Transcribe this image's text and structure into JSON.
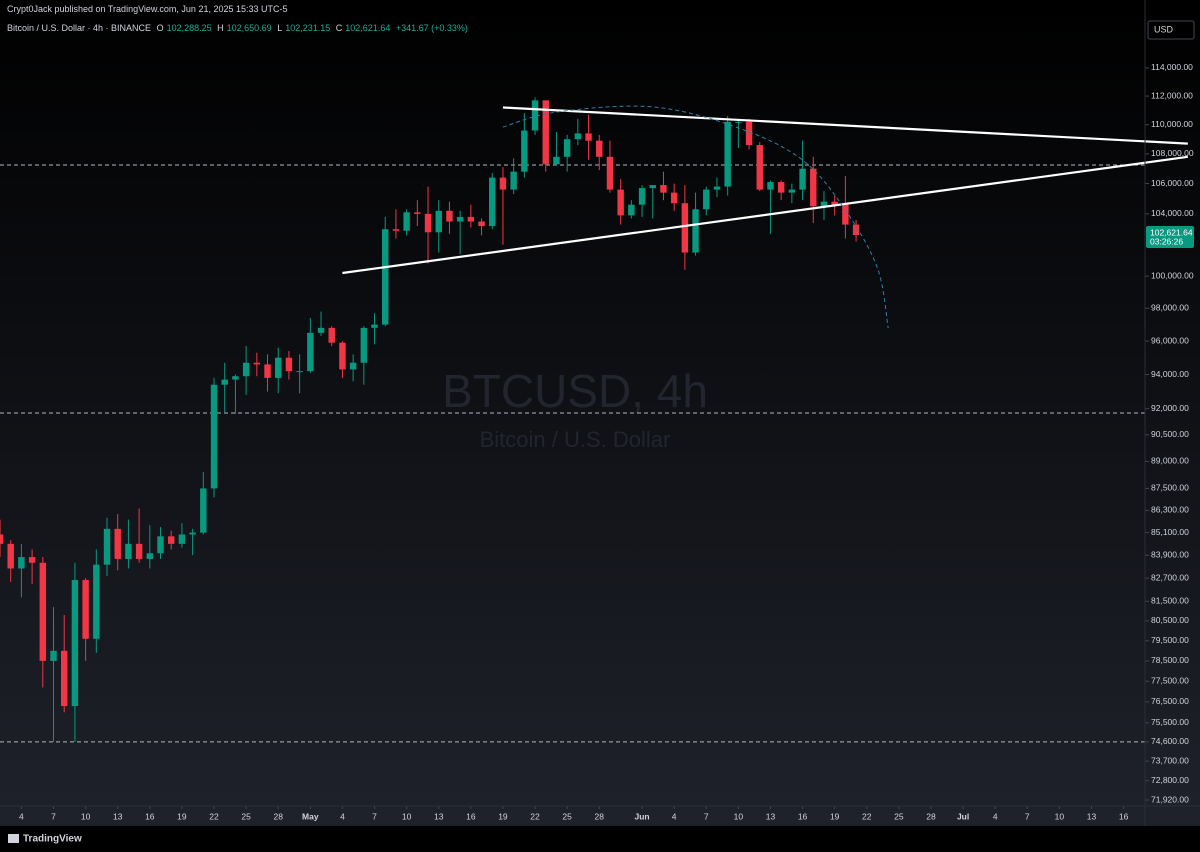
{
  "header": {
    "published": "Crypt0Jack published on TradingView.com, Jun 21, 2025 15:33 UTC-5",
    "symbol": "Bitcoin / U.S. Dollar · 4h · BINANCE",
    "ohlc": [
      {
        "key": "O",
        "value": "102,288.25"
      },
      {
        "key": "H",
        "value": "102,650.69"
      },
      {
        "key": "L",
        "value": "102,231.15"
      },
      {
        "key": "C",
        "value": "102,621.64"
      }
    ],
    "change": "+341.67 (+0.33%)"
  },
  "footer": {
    "brand": "TradingView"
  },
  "chart_data": {
    "type": "candlestick",
    "currency": "USD",
    "watermark": {
      "symbol": "BTCUSD, 4h",
      "description": "Bitcoin / U.S. Dollar"
    },
    "x": [
      "2025-04-02",
      "2025-04-03",
      "2025-04-04",
      "2025-04-05",
      "2025-04-06",
      "2025-04-07",
      "2025-04-08",
      "2025-04-09",
      "2025-04-10",
      "2025-04-11",
      "2025-04-12",
      "2025-04-13",
      "2025-04-14",
      "2025-04-15",
      "2025-04-16",
      "2025-04-17",
      "2025-04-18",
      "2025-04-19",
      "2025-04-20",
      "2025-04-21",
      "2025-04-22",
      "2025-04-23",
      "2025-04-24",
      "2025-04-25",
      "2025-04-26",
      "2025-04-27",
      "2025-04-28",
      "2025-04-29",
      "2025-04-30",
      "2025-05-01",
      "2025-05-02",
      "2025-05-03",
      "2025-05-04",
      "2025-05-05",
      "2025-05-06",
      "2025-05-07",
      "2025-05-08",
      "2025-05-09",
      "2025-05-10",
      "2025-05-11",
      "2025-05-12",
      "2025-05-13",
      "2025-05-14",
      "2025-05-15",
      "2025-05-16",
      "2025-05-17",
      "2025-05-18",
      "2025-05-19",
      "2025-05-20",
      "2025-05-21",
      "2025-05-22",
      "2025-05-23",
      "2025-05-24",
      "2025-05-25",
      "2025-05-26",
      "2025-05-27",
      "2025-05-28",
      "2025-05-29",
      "2025-05-30",
      "2025-05-31",
      "2025-06-01",
      "2025-06-02",
      "2025-06-03",
      "2025-06-04",
      "2025-06-05",
      "2025-06-06",
      "2025-06-07",
      "2025-06-08",
      "2025-06-09",
      "2025-06-10",
      "2025-06-11",
      "2025-06-12",
      "2025-06-13",
      "2025-06-14",
      "2025-06-15",
      "2025-06-16",
      "2025-06-17",
      "2025-06-18",
      "2025-06-19",
      "2025-06-20",
      "2025-06-21"
    ],
    "open": [
      85000,
      84500,
      83200,
      83800,
      83500,
      78500,
      79000,
      76300,
      82600,
      79600,
      83400,
      85300,
      83700,
      84500,
      83700,
      84000,
      84900,
      84500,
      85000,
      85100,
      87500,
      93400,
      93700,
      93900,
      94700,
      94600,
      93800,
      95000,
      94200,
      94200,
      96500,
      96800,
      95900,
      94300,
      94700,
      96800,
      97000,
      103000,
      102900,
      104100,
      104000,
      102800,
      104200,
      103500,
      103800,
      103500,
      103200,
      106400,
      105600,
      106800,
      109600,
      111700,
      107300,
      107800,
      109000,
      109400,
      108900,
      107800,
      105600,
      103900,
      104600,
      105700,
      105900,
      105400,
      104700,
      101500,
      104300,
      105600,
      105800,
      110200,
      110200,
      108600,
      105600,
      106100,
      105400,
      105600,
      107000,
      104500,
      104800,
      104600,
      103300
    ],
    "high": [
      85800,
      84700,
      84500,
      84200,
      83800,
      81200,
      80800,
      83500,
      82700,
      84200,
      85900,
      86100,
      85800,
      86400,
      85500,
      85400,
      85200,
      85600,
      85300,
      88400,
      93800,
      94700,
      94000,
      95700,
      95300,
      95200,
      95600,
      95400,
      95200,
      97400,
      97800,
      96900,
      96000,
      95200,
      96900,
      97700,
      103800,
      104300,
      104300,
      104900,
      105800,
      104900,
      104800,
      104200,
      104600,
      103700,
      106700,
      107100,
      107700,
      110800,
      111900,
      111300,
      109500,
      109300,
      110400,
      110700,
      109300,
      108900,
      106300,
      104900,
      105900,
      105900,
      106800,
      106000,
      105900,
      105400,
      105800,
      106400,
      110600,
      110400,
      110400,
      108800,
      106200,
      106200,
      106000,
      108900,
      107800,
      105500,
      105200,
      106500,
      103600
    ],
    "low": [
      83800,
      82500,
      81700,
      82400,
      77200,
      74600,
      76000,
      74600,
      78500,
      78900,
      82800,
      83100,
      83200,
      83500,
      83200,
      83700,
      84200,
      84300,
      83900,
      85000,
      87000,
      91800,
      91700,
      92800,
      93900,
      93000,
      92900,
      93700,
      92900,
      94100,
      96300,
      95700,
      93800,
      93600,
      93400,
      95800,
      96900,
      102400,
      102600,
      103200,
      100800,
      101500,
      102700,
      101400,
      103100,
      102600,
      103000,
      102000,
      105300,
      106400,
      109300,
      106800,
      107200,
      106800,
      108600,
      107600,
      106900,
      105400,
      103300,
      103700,
      103800,
      103700,
      104900,
      104200,
      100400,
      101300,
      103900,
      105100,
      105200,
      108400,
      108300,
      105500,
      102700,
      104900,
      104700,
      104900,
      103400,
      103600,
      103900,
      102400,
      102200
    ],
    "close": [
      84500,
      83200,
      83800,
      83500,
      78500,
      79000,
      76300,
      82600,
      79600,
      83400,
      85300,
      83700,
      84500,
      83700,
      84000,
      84900,
      84500,
      85000,
      85100,
      87500,
      93400,
      93700,
      93900,
      94700,
      94600,
      93800,
      95000,
      94200,
      94200,
      96500,
      96800,
      95900,
      94300,
      94700,
      96800,
      97000,
      103000,
      102900,
      104100,
      104000,
      102800,
      104200,
      103500,
      103800,
      103500,
      103200,
      106400,
      105600,
      106800,
      109600,
      111700,
      107300,
      107800,
      109000,
      109400,
      108900,
      107800,
      105600,
      103900,
      104600,
      105700,
      105900,
      105400,
      104700,
      101500,
      104300,
      105600,
      105800,
      110200,
      110200,
      108600,
      105600,
      106100,
      105400,
      105600,
      107000,
      104500,
      104800,
      104600,
      103300,
      102621.64
    ],
    "up_color": "#089981",
    "down_color": "#f23645",
    "log_scale": true,
    "grid": false,
    "xlim": [
      "2025-04-02",
      "2025-07-18"
    ],
    "xticks": [
      {
        "value": "2025-04-04",
        "label": "4"
      },
      {
        "value": "2025-04-07",
        "label": "7"
      },
      {
        "value": "2025-04-10",
        "label": "10"
      },
      {
        "value": "2025-04-13",
        "label": "13"
      },
      {
        "value": "2025-04-16",
        "label": "16"
      },
      {
        "value": "2025-04-19",
        "label": "19"
      },
      {
        "value": "2025-04-22",
        "label": "22"
      },
      {
        "value": "2025-04-25",
        "label": "25"
      },
      {
        "value": "2025-04-28",
        "label": "28"
      },
      {
        "value": "2025-05-01",
        "label": "May"
      },
      {
        "value": "2025-05-04",
        "label": "4"
      },
      {
        "value": "2025-05-07",
        "label": "7"
      },
      {
        "value": "2025-05-10",
        "label": "10"
      },
      {
        "value": "2025-05-13",
        "label": "13"
      },
      {
        "value": "2025-05-16",
        "label": "16"
      },
      {
        "value": "2025-05-19",
        "label": "19"
      },
      {
        "value": "2025-05-22",
        "label": "22"
      },
      {
        "value": "2025-05-25",
        "label": "25"
      },
      {
        "value": "2025-05-28",
        "label": "28"
      },
      {
        "value": "2025-06-01",
        "label": "Jun"
      },
      {
        "value": "2025-06-04",
        "label": "4"
      },
      {
        "value": "2025-06-07",
        "label": "7"
      },
      {
        "value": "2025-06-10",
        "label": "10"
      },
      {
        "value": "2025-06-13",
        "label": "13"
      },
      {
        "value": "2025-06-16",
        "label": "16"
      },
      {
        "value": "2025-06-19",
        "label": "19"
      },
      {
        "value": "2025-06-22",
        "label": "22"
      },
      {
        "value": "2025-06-25",
        "label": "25"
      },
      {
        "value": "2025-06-28",
        "label": "28"
      },
      {
        "value": "2025-07-01",
        "label": "Jul"
      },
      {
        "value": "2025-07-04",
        "label": "4"
      },
      {
        "value": "2025-07-07",
        "label": "7"
      },
      {
        "value": "2025-07-10",
        "label": "10"
      },
      {
        "value": "2025-07-13",
        "label": "13"
      },
      {
        "value": "2025-07-16",
        "label": "16"
      }
    ],
    "ylim": [
      71650,
      118980
    ],
    "yticks": [
      {
        "value": 71920,
        "label": "71,920.00"
      },
      {
        "value": 72800,
        "label": "72,800.00"
      },
      {
        "value": 73700,
        "label": "73,700.00"
      },
      {
        "value": 74600,
        "label": "74,600.00"
      },
      {
        "value": 75500,
        "label": "75,500.00"
      },
      {
        "value": 76500,
        "label": "76,500.00"
      },
      {
        "value": 77500,
        "label": "77,500.00"
      },
      {
        "value": 78500,
        "label": "78,500.00"
      },
      {
        "value": 79500,
        "label": "79,500.00"
      },
      {
        "value": 80500,
        "label": "80,500.00"
      },
      {
        "value": 81500,
        "label": "81,500.00"
      },
      {
        "value": 82700,
        "label": "82,700.00"
      },
      {
        "value": 83900,
        "label": "83,900.00"
      },
      {
        "value": 85100,
        "label": "85,100.00"
      },
      {
        "value": 86300,
        "label": "86,300.00"
      },
      {
        "value": 87500,
        "label": "87,500.00"
      },
      {
        "value": 89000,
        "label": "89,000.00"
      },
      {
        "value": 90500,
        "label": "90,500.00"
      },
      {
        "value": 92000,
        "label": "92,000.00"
      },
      {
        "value": 94000,
        "label": "94,000.00"
      },
      {
        "value": 96000,
        "label": "96,000.00"
      },
      {
        "value": 98000,
        "label": "98,000.00"
      },
      {
        "value": 100000,
        "label": "100,000.00"
      },
      {
        "value": 104000,
        "label": "104,000.00"
      },
      {
        "value": 106000,
        "label": "106,000.00"
      },
      {
        "value": 108000,
        "label": "108,000.00"
      },
      {
        "value": 110000,
        "label": "110,000.00"
      },
      {
        "value": 112000,
        "label": "112,000.00"
      },
      {
        "value": 114000,
        "label": "114,000.00"
      }
    ],
    "hlines": [
      107250,
      91750,
      74600
    ],
    "hline_color": "#b2b5be",
    "trendlines": [
      {
        "from": [
          "2025-05-19",
          111200
        ],
        "to": [
          "2025-07-22",
          108700
        ]
      },
      {
        "from": [
          "2025-05-04",
          100200
        ],
        "to": [
          "2025-07-22",
          107800
        ]
      }
    ],
    "trendline_color": "#ffffff",
    "curve": {
      "x": [
        "2025-05-19",
        "2025-05-24",
        "2025-06-02",
        "2025-06-10",
        "2025-06-16",
        "2025-06-20",
        "2025-06-23",
        "2025-06-24"
      ],
      "y": [
        109840,
        110880,
        111240,
        109780,
        107580,
        104250,
        100500,
        96790
      ]
    },
    "curve_color": "#2f7fa8",
    "last_price": {
      "value": 102621.64,
      "label": "102,621.64"
    },
    "countdown": "03:26:26"
  }
}
